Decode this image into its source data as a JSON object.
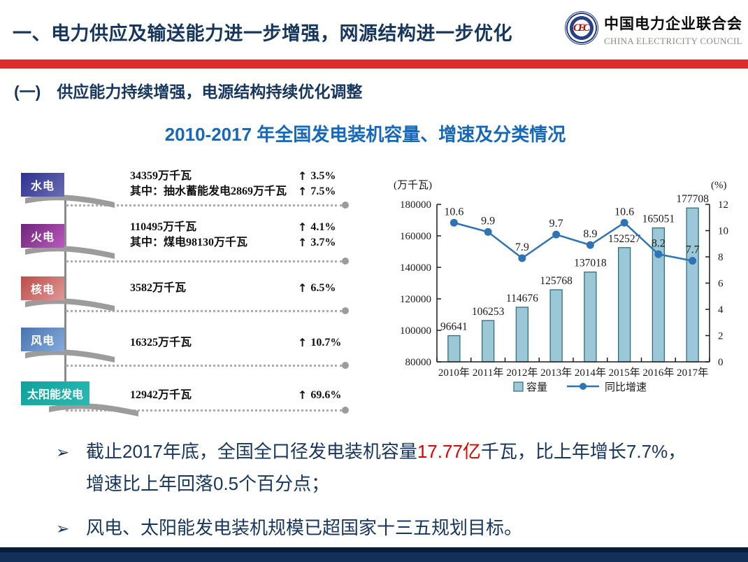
{
  "header": {
    "title": "一、电力供应及输送能力进一步增强，网源结构进一步优化",
    "logo": {
      "monogram": "CEC",
      "org_cn": "中国电力企业联合会",
      "org_en": "CHINA ELECTRICITY COUNCIL"
    }
  },
  "section": {
    "heading": "(一)　供应能力持续增强，电源结构持续优化调整"
  },
  "chart_title": "2010-2017 年全国发电装机容量、增速及分类情况",
  "arrows": {
    "up": "↑"
  },
  "sources": [
    {
      "label": "水电",
      "value": "34359万千瓦",
      "growth": "3.5%",
      "sub": "其中：抽水蓄能发电2869万千瓦",
      "sub_growth": "7.5%"
    },
    {
      "label": "火电",
      "value": "110495万千瓦",
      "growth": "4.1%",
      "sub": "其中：煤电98130万千瓦",
      "sub_growth": "3.7%"
    },
    {
      "label": "核电",
      "value": "3582万千瓦",
      "growth": "6.5%"
    },
    {
      "label": "风电",
      "value": "16325万千瓦",
      "growth": "10.7%"
    },
    {
      "label": "太阳能发电",
      "value": "12942万千瓦",
      "growth": "69.6%"
    }
  ],
  "chart_data": {
    "type": "bar+line",
    "title": "2010-2017 年全国发电装机容量、增速及分类情况",
    "categories": [
      "2010年",
      "2011年",
      "2012年",
      "2013年",
      "2014年",
      "2015年",
      "2016年",
      "2017年"
    ],
    "series": [
      {
        "name": "容量",
        "type": "bar",
        "axis": "left",
        "values": [
          96641,
          106253,
          114676,
          125768,
          137018,
          152527,
          165051,
          177708
        ],
        "fill": "#9CC7D6",
        "stroke": "#2F6F80"
      },
      {
        "name": "同比增速",
        "type": "line",
        "axis": "right",
        "values": [
          10.6,
          9.9,
          7.9,
          9.7,
          8.9,
          10.6,
          8.2,
          7.7
        ],
        "color": "#2E74B5"
      }
    ],
    "left_axis": {
      "label": "(万千瓦)",
      "min": 80000,
      "max": 180000,
      "step": 20000
    },
    "right_axis": {
      "label": "(%)",
      "min": 0,
      "max": 12,
      "step": 2
    },
    "grid": false,
    "legend_position": "bottom"
  },
  "bullets": {
    "marker": "➢",
    "b1_pre": "截止2017年底，全国全口径发电装机容量",
    "b1_red": "17.77亿",
    "b1_post": "千瓦，比上年增长7.7%，增速比上年回落0.5个百分点；",
    "b2": "风电、太阳能发电装机规模已超国家十三五规划目标。"
  }
}
